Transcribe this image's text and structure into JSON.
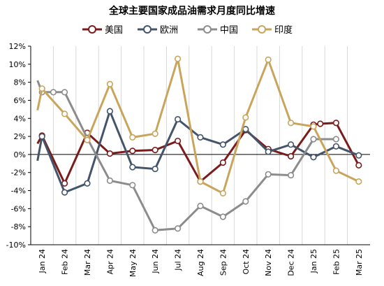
{
  "chart_data": {
    "type": "line",
    "title": "全球主要国家成品油需求月度同比增速",
    "legend_position": "top",
    "grid": "vertical",
    "ylim": [
      -10,
      12
    ],
    "yticks": [
      12,
      10,
      8,
      6,
      4,
      2,
      0,
      -2,
      -4,
      -6,
      -8,
      -10
    ],
    "ytick_labels": [
      "12%",
      "10%",
      "8%",
      "6%",
      "4%",
      "2%",
      "0%",
      "-2%",
      "-4%",
      "-6%",
      "-8%",
      "-10%"
    ],
    "categories": [
      "Jan 24",
      "Feb 24",
      "Mar 24",
      "Apr 24",
      "May 24",
      "Jun 24",
      "Jul 24",
      "Aug 24",
      "Sep 24",
      "Oct 24",
      "Nov 24",
      "Dec 24",
      "Jan 25",
      "Feb 25",
      "Mar 25"
    ],
    "x_positions": [
      0,
      1,
      2,
      3,
      4,
      5,
      6,
      7,
      8,
      9,
      10,
      11,
      12,
      13,
      14
    ],
    "series": [
      {
        "name": "美国",
        "color": "#7b1c1c",
        "x": [
          -0.2,
          0,
          1,
          2,
          3,
          4,
          5,
          6,
          7,
          8,
          9,
          10,
          11,
          12,
          12.3,
          13,
          14
        ],
        "values": [
          1.2,
          2.1,
          -3.2,
          2.4,
          0.1,
          0.4,
          0.5,
          1.5,
          -3.0,
          -0.9,
          2.7,
          0.6,
          -0.2,
          3.3,
          3.4,
          3.5,
          -1.2
        ]
      },
      {
        "name": "欧洲",
        "color": "#44546a",
        "x": [
          -0.2,
          0,
          1,
          2,
          3,
          4,
          5,
          6,
          7,
          8,
          9,
          10,
          11,
          12,
          13,
          14
        ],
        "values": [
          -0.7,
          2.0,
          -4.2,
          -3.2,
          4.8,
          -1.4,
          -1.6,
          3.9,
          1.9,
          1.1,
          2.8,
          0.3,
          1.1,
          -0.3,
          0.9,
          -0.1
        ]
      },
      {
        "name": "中国",
        "color": "#8c8c8c",
        "x": [
          -0.2,
          0,
          0.5,
          1,
          2,
          3,
          4,
          5,
          6,
          7,
          8,
          9,
          10,
          11,
          12,
          13
        ],
        "values": [
          8.2,
          6.9,
          6.9,
          6.9,
          1.8,
          -2.9,
          -3.4,
          -8.4,
          -8.2,
          -5.7,
          -6.9,
          -5.2,
          -2.2,
          -2.3,
          1.7,
          1.7
        ]
      },
      {
        "name": "印度",
        "color": "#c9a55c",
        "x": [
          -0.2,
          0,
          1,
          2,
          3,
          4,
          5,
          6,
          7,
          8,
          9,
          10,
          11,
          12,
          13,
          14
        ],
        "values": [
          4.9,
          7.3,
          4.5,
          1.6,
          7.8,
          1.9,
          2.3,
          10.6,
          -3.0,
          -4.3,
          4.1,
          10.5,
          3.5,
          3.1,
          -1.8,
          -3.0
        ]
      }
    ]
  }
}
